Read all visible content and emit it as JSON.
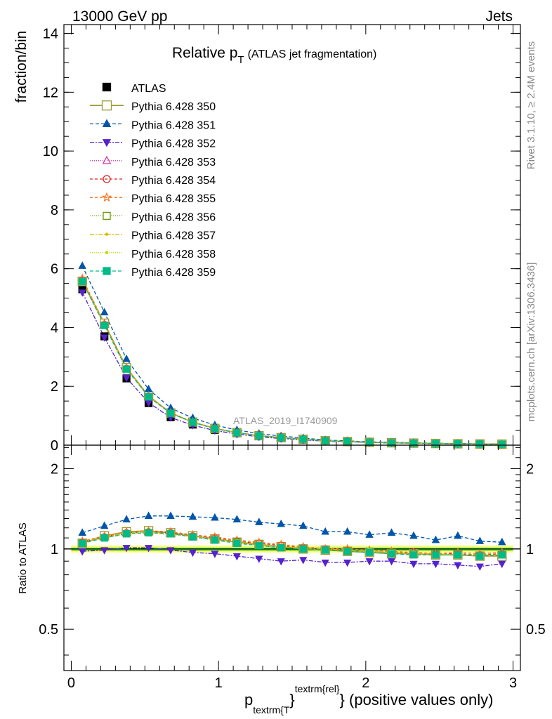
{
  "header": {
    "left": "13000 GeV pp",
    "right": "Jets"
  },
  "side_labels": {
    "rivet": "Rivet 3.1.10, ≥ 2.4M events",
    "mcplots": "mcplots.cern.ch [arXiv:1306.3436]"
  },
  "watermark": "ATLAS_2019_I1740909",
  "title": {
    "main": "Relative p",
    "sub": "T",
    "rest": "(ATLAS jet fragmentation)"
  },
  "xaxis_label": {
    "p": "p",
    "sub": "textrm{T",
    "brace": "}",
    "sup": "textrm{rel}",
    "rest": "} (positive values only)"
  },
  "colors": {
    "band": "#ffff66",
    "band_inner": "#aaee88",
    "green_line": "#008800"
  },
  "chart_data": {
    "type": "line",
    "x": [
      0.075,
      0.225,
      0.375,
      0.525,
      0.675,
      0.825,
      0.975,
      1.125,
      1.275,
      1.425,
      1.575,
      1.725,
      1.875,
      2.025,
      2.175,
      2.325,
      2.475,
      2.625,
      2.775,
      2.925
    ],
    "xlim": [
      -0.05,
      3.05
    ],
    "xticks": [
      "0",
      "1",
      "2",
      "3"
    ],
    "main": {
      "ylabel": "fraction/bin",
      "ylim": [
        0,
        14.3
      ],
      "yticks": [
        "0",
        "2",
        "4",
        "6",
        "8",
        "10",
        "12",
        "14"
      ],
      "data": {
        "name": "ATLAS",
        "values": [
          5.3,
          3.7,
          2.27,
          1.43,
          0.95,
          0.7,
          0.52,
          0.4,
          0.31,
          0.25,
          0.2,
          0.15,
          0.125,
          0.1,
          0.085,
          0.072,
          0.06,
          0.05,
          0.043,
          0.036
        ]
      }
    },
    "ratio": {
      "ylabel": "Ratio to ATLAS",
      "ylim": [
        0.35,
        2.45
      ],
      "yticks": [
        "0.5",
        "1",
        "2"
      ],
      "band": [
        0.97,
        1.03
      ],
      "band_inner": [
        0.985,
        1.015
      ]
    },
    "series": [
      {
        "name": "Pythia 6.428 350",
        "color": "#999933",
        "marker": "square-open",
        "dash": "",
        "ratio": [
          1.05,
          1.12,
          1.16,
          1.17,
          1.15,
          1.12,
          1.09,
          1.06,
          1.04,
          1.02,
          1.0,
          0.99,
          0.98,
          0.97,
          0.96,
          0.96,
          0.95,
          0.95,
          0.94,
          0.94
        ]
      },
      {
        "name": "Pythia 6.428 351",
        "color": "#0055aa",
        "marker": "triangle-up",
        "dash": "5,3",
        "ratio": [
          1.15,
          1.22,
          1.29,
          1.33,
          1.33,
          1.32,
          1.31,
          1.29,
          1.26,
          1.24,
          1.22,
          1.16,
          1.16,
          1.13,
          1.15,
          1.12,
          1.08,
          1.12,
          1.07,
          1.06
        ]
      },
      {
        "name": "Pythia 6.428 352",
        "color": "#5522cc",
        "marker": "triangle-down",
        "dash": "6,2,2,2",
        "ratio": [
          0.98,
          0.99,
          1.01,
          1.01,
          0.99,
          0.97,
          0.96,
          0.94,
          0.92,
          0.9,
          0.91,
          0.89,
          0.89,
          0.9,
          0.9,
          0.88,
          0.88,
          0.87,
          0.86,
          0.88
        ]
      },
      {
        "name": "Pythia 6.428 353",
        "color": "#cc3399",
        "marker": "triangle-open",
        "dash": "1,2",
        "ratio": [
          1.05,
          1.11,
          1.15,
          1.16,
          1.14,
          1.12,
          1.09,
          1.06,
          1.03,
          1.01,
          1.0,
          0.99,
          0.99,
          0.98,
          0.97,
          0.96,
          0.95,
          0.95,
          0.94,
          0.95
        ]
      },
      {
        "name": "Pythia 6.428 354",
        "color": "#dd2222",
        "marker": "circle-open",
        "dash": "4,3",
        "ratio": [
          1.06,
          1.11,
          1.15,
          1.16,
          1.15,
          1.12,
          1.1,
          1.07,
          1.05,
          1.03,
          1.01,
          1.0,
          0.99,
          0.98,
          0.97,
          0.97,
          0.96,
          0.96,
          0.95,
          0.96
        ]
      },
      {
        "name": "Pythia 6.428 355",
        "color": "#ee7722",
        "marker": "star-open",
        "dash": "4,3",
        "ratio": [
          1.07,
          1.12,
          1.16,
          1.17,
          1.16,
          1.13,
          1.11,
          1.08,
          1.06,
          1.04,
          1.02,
          1.0,
          1.0,
          0.99,
          0.98,
          0.97,
          0.96,
          0.97,
          0.96,
          0.97
        ]
      },
      {
        "name": "Pythia 6.428 356",
        "color": "#669900",
        "marker": "square-open",
        "dash": "1,2",
        "ratio": [
          1.05,
          1.1,
          1.14,
          1.15,
          1.14,
          1.11,
          1.08,
          1.06,
          1.03,
          1.01,
          1.0,
          0.99,
          0.98,
          0.98,
          0.97,
          0.96,
          0.95,
          0.95,
          0.94,
          0.95
        ]
      },
      {
        "name": "Pythia 6.428 357",
        "color": "#ddbb00",
        "marker": "dot",
        "dash": "6,2,2,2",
        "ratio": [
          1.06,
          1.11,
          1.15,
          1.16,
          1.14,
          1.12,
          1.09,
          1.07,
          1.04,
          1.02,
          1.01,
          1.0,
          0.99,
          0.98,
          0.97,
          0.96,
          0.96,
          0.95,
          0.95,
          0.95
        ]
      },
      {
        "name": "Pythia 6.428 358",
        "color": "#bbdd00",
        "marker": "dot",
        "dash": "1,2",
        "ratio": [
          1.05,
          1.1,
          1.14,
          1.15,
          1.13,
          1.11,
          1.08,
          1.06,
          1.03,
          1.02,
          1.0,
          0.99,
          0.98,
          0.98,
          0.97,
          0.96,
          0.95,
          0.95,
          0.94,
          0.95
        ]
      },
      {
        "name": "Pythia 6.428 359",
        "color": "#00bb88",
        "marker": "square",
        "dash": "5,3",
        "ratio": [
          1.05,
          1.1,
          1.14,
          1.15,
          1.14,
          1.11,
          1.08,
          1.05,
          1.03,
          1.01,
          1.0,
          0.99,
          0.98,
          0.97,
          0.96,
          0.95,
          0.95,
          0.95,
          0.94,
          0.95
        ]
      }
    ]
  }
}
